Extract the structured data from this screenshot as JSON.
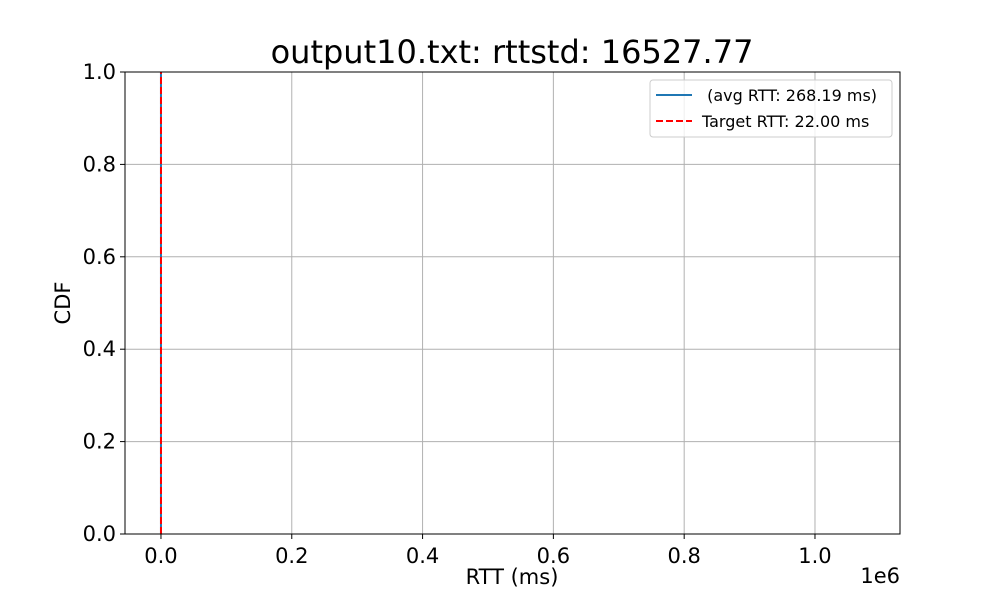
{
  "chart_data": {
    "type": "line",
    "title": "output10.txt: rttstd: 16527.77",
    "xlabel": "RTT (ms)",
    "ylabel": "CDF",
    "x_offset_label": "1e6",
    "xlim": [
      -0.055,
      1.13
    ],
    "ylim": [
      0.0,
      1.0
    ],
    "xticks": [
      0.0,
      0.2,
      0.4,
      0.6,
      0.8,
      1.0
    ],
    "xtick_labels": [
      "0.0",
      "0.2",
      "0.4",
      "0.6",
      "0.8",
      "1.0"
    ],
    "yticks": [
      0.0,
      0.2,
      0.4,
      0.6,
      0.8,
      1.0
    ],
    "ytick_labels": [
      "0.0",
      "0.2",
      "0.4",
      "0.6",
      "0.8",
      "1.0"
    ],
    "grid": true,
    "legend_position": "top-right",
    "series": [
      {
        "name": " (avg RTT: 268.19 ms)",
        "style": "solid",
        "color": "#1f77b4",
        "x": [
          0.0,
          0.0
        ],
        "y": [
          0.0,
          1.0
        ]
      },
      {
        "name": "Target RTT: 22.00 ms",
        "style": "dashed",
        "color": "#ff0000",
        "x": [
          2.2e-05,
          2.2e-05
        ],
        "y": [
          0.0,
          1.0
        ]
      }
    ]
  }
}
